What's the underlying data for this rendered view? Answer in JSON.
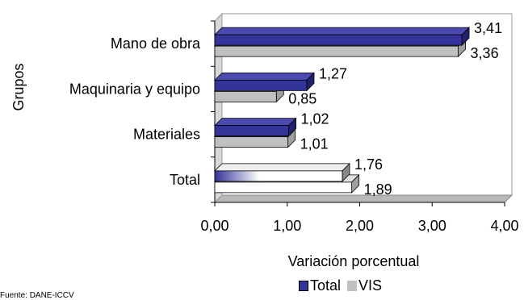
{
  "chart_data": {
    "type": "bar",
    "orientation": "horizontal",
    "three_d": true,
    "categories": [
      "Mano de obra",
      "Maquinaria y equipo",
      "Materiales",
      "Total"
    ],
    "series": [
      {
        "name": "Total",
        "values": [
          3.41,
          1.27,
          1.02,
          1.76
        ],
        "labels": [
          "3,41",
          "1,27",
          "1,02",
          "1,76"
        ],
        "color": "#333399"
      },
      {
        "name": "VIS",
        "values": [
          3.36,
          0.85,
          1.01,
          1.89
        ],
        "labels": [
          "3,36",
          "0,85",
          "1,01",
          "1,89"
        ],
        "color": "#c0c0c0"
      }
    ],
    "xlim": [
      0,
      4
    ],
    "xticks": [
      "0,00",
      "1,00",
      "2,00",
      "3,00",
      "4,00"
    ],
    "xlabel": "Variación porcentual",
    "ylabel": "Grupos",
    "legend_position": "bottom",
    "grid": false
  },
  "legend": {
    "total": "Total",
    "vis": "VIS"
  },
  "source_text": "Fuente: DANE-ICCV"
}
